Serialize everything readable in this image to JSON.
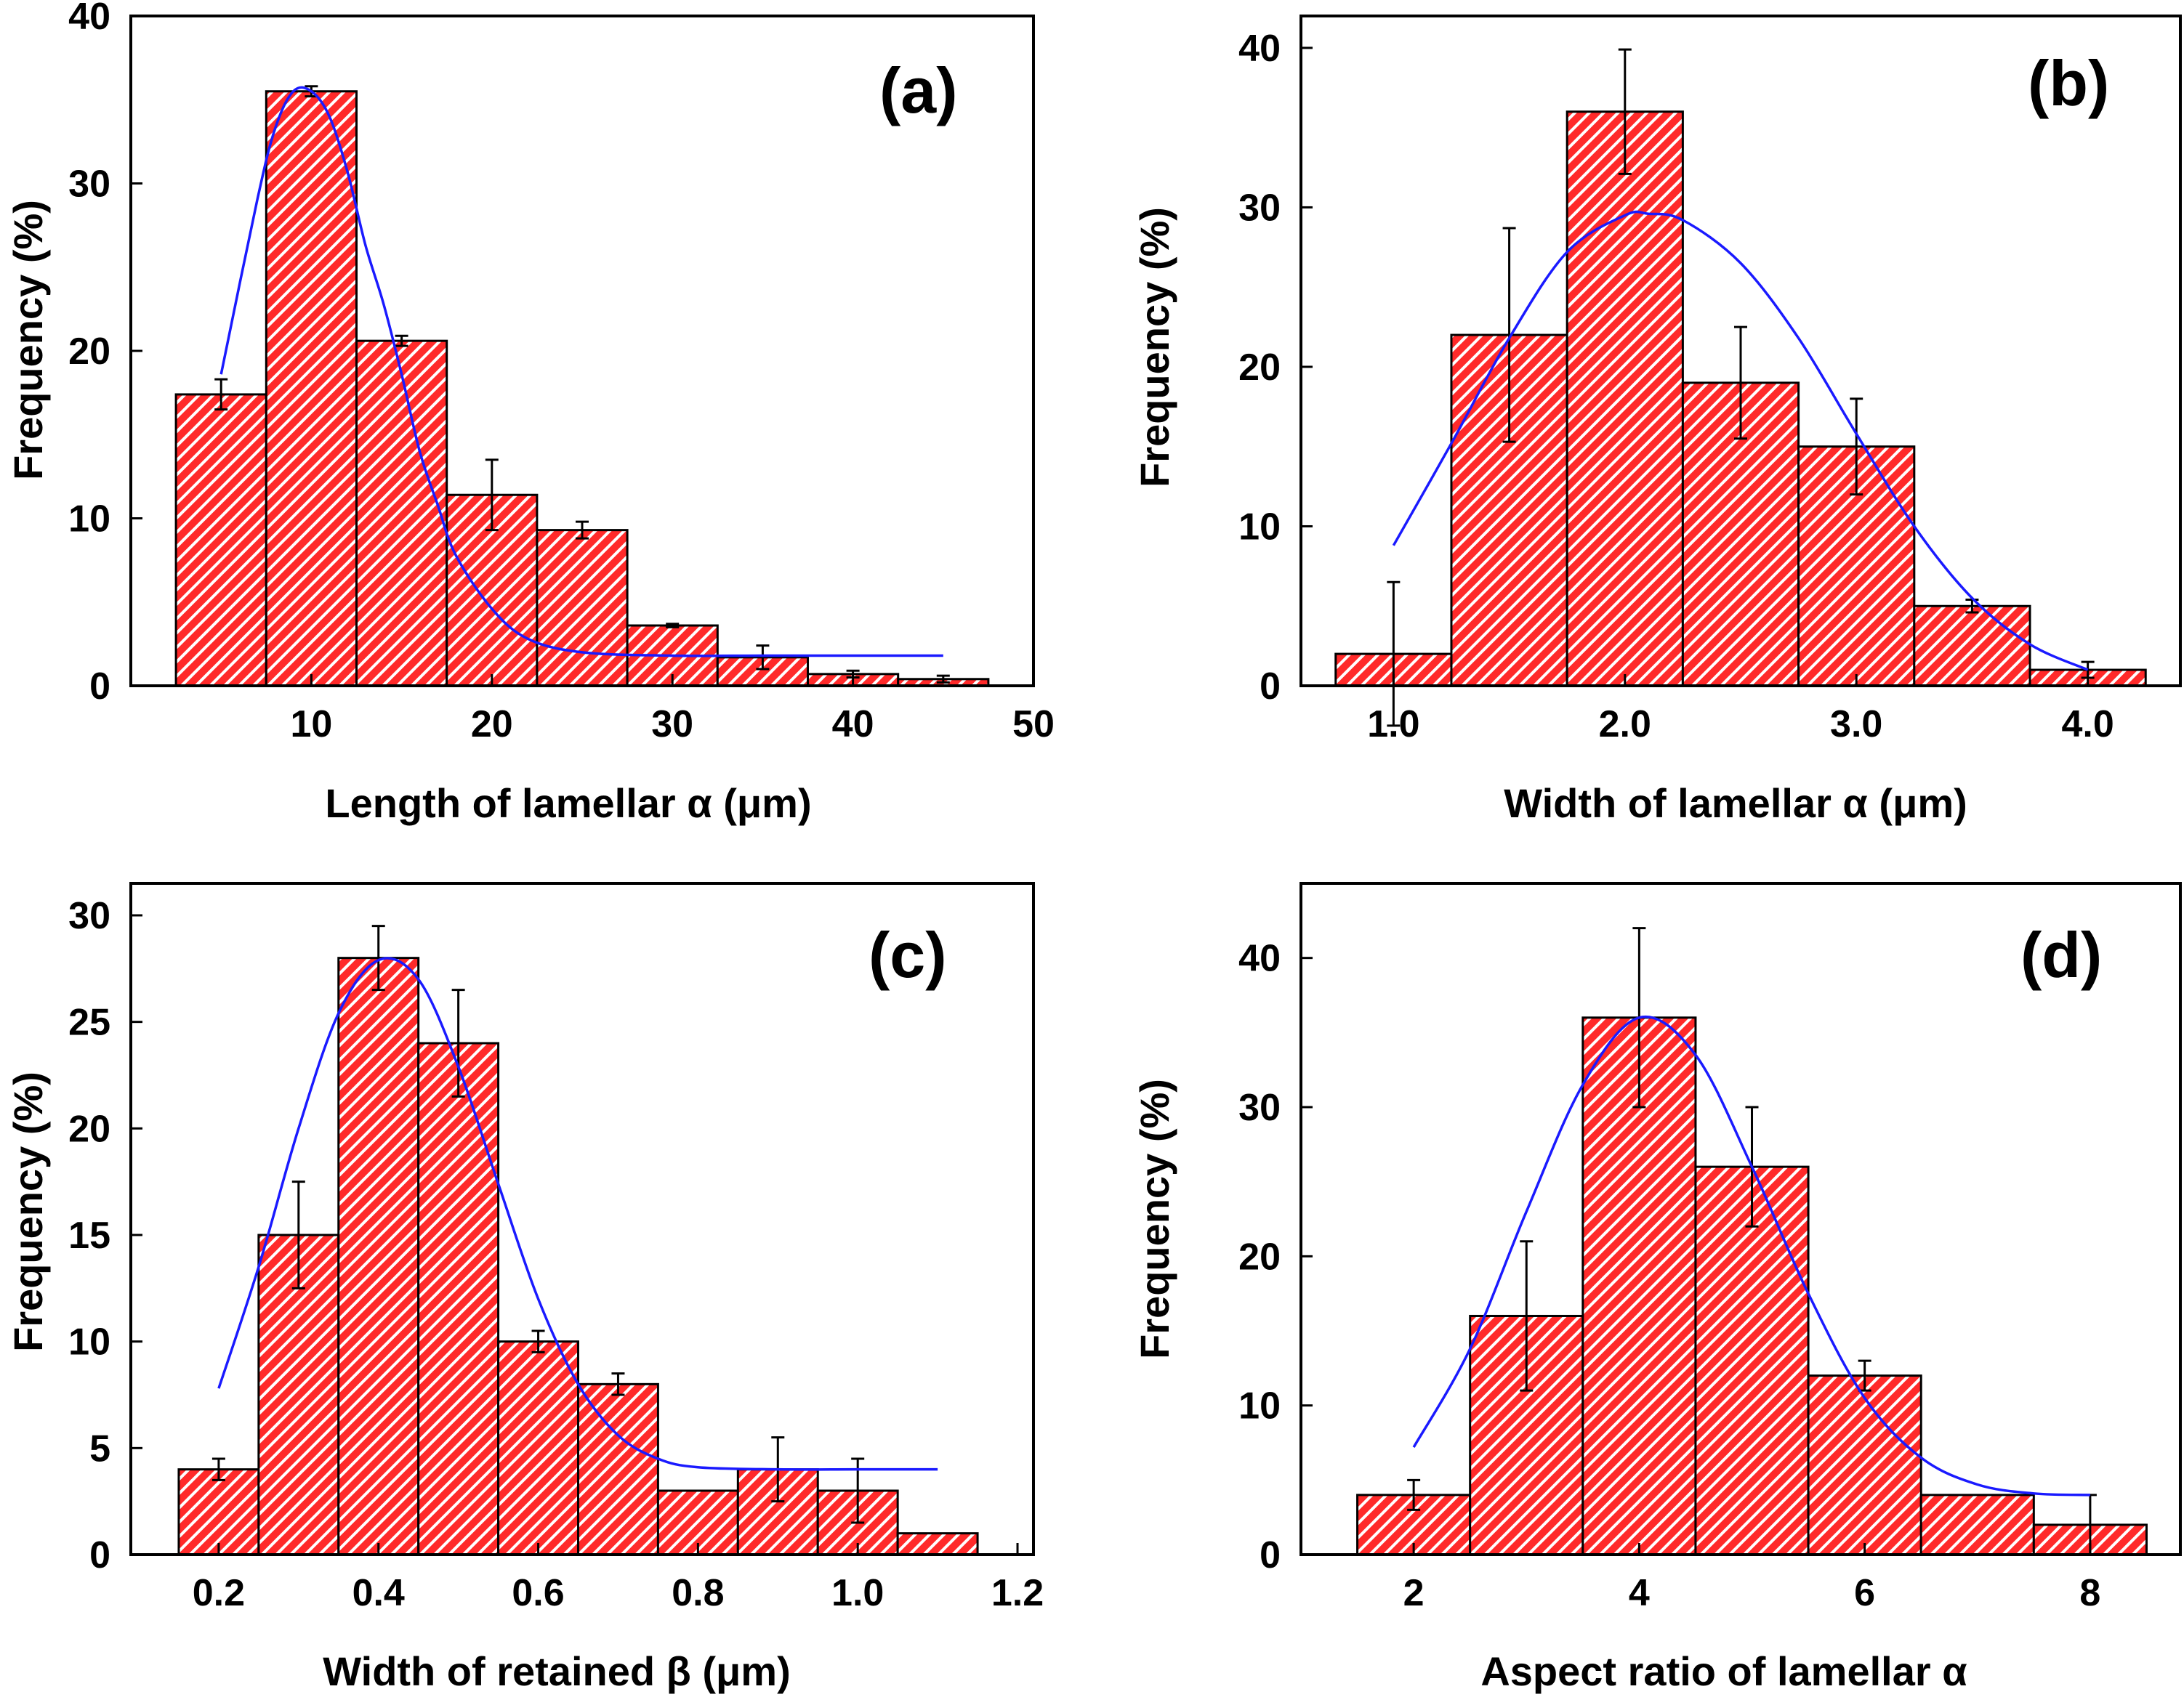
{
  "colors": {
    "bar_fill": "#ff2a2a",
    "hatch": "#ffffff",
    "bar_edge": "#000000",
    "fit_line": "#1a1aff",
    "error_bar": "#000000"
  },
  "chart_data": [
    {
      "type": "bar",
      "panel_label": "(a)",
      "xlabel": "Length of lamellar α (μm)",
      "ylabel": "Frequency (%)",
      "xlim": [
        0,
        50
      ],
      "ylim": [
        0,
        40
      ],
      "xticks": [
        10,
        20,
        30,
        40,
        50
      ],
      "xtick_labels": [
        "10",
        "20",
        "30",
        "40",
        "50"
      ],
      "yticks": [
        0,
        10,
        20,
        30,
        40
      ],
      "ytick_labels": [
        "0",
        "10",
        "20",
        "30",
        "40"
      ],
      "bin_width": 5,
      "centers": [
        5,
        10,
        15,
        20,
        25,
        30,
        35,
        40,
        45
      ],
      "values": [
        17.4,
        35.5,
        20.6,
        11.4,
        9.3,
        3.6,
        1.7,
        0.7,
        0.4
      ],
      "errors": [
        0.9,
        0.3,
        0.3,
        2.1,
        0.5,
        0.1,
        0.7,
        0.2,
        0.2
      ],
      "fit": {
        "x": [
          5,
          7,
          8,
          9,
          10,
          11,
          12,
          13,
          14,
          15,
          16,
          17,
          18,
          20,
          22,
          25,
          30,
          35,
          40,
          45
        ],
        "y": [
          18.6,
          29.0,
          33.3,
          35.5,
          35.5,
          34.0,
          30.7,
          26.3,
          22.8,
          18.6,
          14.0,
          10.8,
          7.8,
          4.6,
          2.8,
          2.0,
          1.8,
          1.8,
          1.8,
          1.8
        ]
      }
    },
    {
      "type": "bar",
      "panel_label": "(b)",
      "xlabel": "Width of lamellar α (μm)",
      "ylabel": "Frequency (%)",
      "xlim": [
        0.6,
        4.4
      ],
      "ylim": [
        0,
        42
      ],
      "xticks": [
        1.0,
        2.0,
        3.0,
        4.0
      ],
      "xtick_labels": [
        "1.0",
        "2.0",
        "3.0",
        "4.0"
      ],
      "yticks": [
        0,
        10,
        20,
        30,
        40
      ],
      "ytick_labels": [
        "0",
        "10",
        "20",
        "30",
        "40"
      ],
      "bin_width": 0.5,
      "centers": [
        1.0,
        1.5,
        2.0,
        2.5,
        3.0,
        3.5,
        4.0
      ],
      "values": [
        2,
        22,
        36,
        19,
        15,
        5,
        1
      ],
      "errors": [
        4.5,
        6.7,
        3.9,
        3.5,
        3.0,
        0.4,
        0.5
      ],
      "fit": {
        "x": [
          1.0,
          1.25,
          1.5,
          1.75,
          2.0,
          2.1,
          2.25,
          2.5,
          2.75,
          3.0,
          3.25,
          3.5,
          3.75,
          4.0
        ],
        "y": [
          8.8,
          15.2,
          21.8,
          27.2,
          29.5,
          29.6,
          29.2,
          26.5,
          21.8,
          15.8,
          10.0,
          5.5,
          2.6,
          1.0
        ]
      }
    },
    {
      "type": "bar",
      "panel_label": "(c)",
      "xlabel": "Width of retained β (μm)",
      "ylabel": "Frequency (%)",
      "xlim": [
        0.09,
        1.22
      ],
      "ylim": [
        0,
        31.5
      ],
      "xticks": [
        0.2,
        0.4,
        0.6,
        0.8,
        1.0,
        1.2
      ],
      "xtick_labels": [
        "0.2",
        "0.4",
        "0.6",
        "0.8",
        "1.0",
        "1.2"
      ],
      "yticks": [
        0,
        5,
        10,
        15,
        20,
        25,
        30
      ],
      "ytick_labels": [
        "0",
        "5",
        "10",
        "15",
        "20",
        "25",
        "30"
      ],
      "bin_width": 0.1,
      "centers": [
        0.2,
        0.3,
        0.4,
        0.5,
        0.6,
        0.7,
        0.8,
        0.9,
        1.0,
        1.1
      ],
      "values": [
        4,
        15,
        28,
        24,
        10,
        8,
        3,
        4,
        3,
        1
      ],
      "errors": [
        0.5,
        2.5,
        1.5,
        2.5,
        0.5,
        0.5,
        null,
        1.5,
        1.5,
        null
      ],
      "fit": {
        "x": [
          0.2,
          0.25,
          0.3,
          0.35,
          0.4,
          0.45,
          0.5,
          0.55,
          0.6,
          0.65,
          0.7,
          0.75,
          0.8,
          0.9,
          1.0,
          1.1
        ],
        "y": [
          7.8,
          13.5,
          20.0,
          25.4,
          27.9,
          27.0,
          22.9,
          17.4,
          12.0,
          8.0,
          5.6,
          4.5,
          4.1,
          4.0,
          4.0,
          4.0
        ]
      }
    },
    {
      "type": "bar",
      "panel_label": "(d)",
      "xlabel": "Aspect ratio of lamellar α",
      "ylabel": "Frequency (%)",
      "xlim": [
        1.0,
        8.8
      ],
      "ylim": [
        0,
        45
      ],
      "xticks": [
        2,
        4,
        6,
        8
      ],
      "xtick_labels": [
        "2",
        "4",
        "6",
        "8"
      ],
      "yticks": [
        0,
        10,
        20,
        30,
        40
      ],
      "ytick_labels": [
        "0",
        "10",
        "20",
        "30",
        "40"
      ],
      "bin_width": 1,
      "centers": [
        2,
        3,
        4,
        5,
        6,
        7,
        8
      ],
      "values": [
        4,
        16,
        36,
        26,
        12,
        4,
        2
      ],
      "errors": [
        1,
        5,
        6,
        4,
        1,
        null,
        2
      ],
      "fit": {
        "x": [
          2.0,
          2.5,
          3.0,
          3.5,
          4.0,
          4.5,
          5.0,
          5.5,
          6.0,
          6.5,
          7.0,
          7.5,
          8.0
        ],
        "y": [
          7.2,
          13.8,
          23.0,
          31.5,
          36.0,
          33.5,
          26.0,
          17.5,
          10.5,
          6.5,
          4.7,
          4.1,
          4.0
        ]
      }
    }
  ]
}
